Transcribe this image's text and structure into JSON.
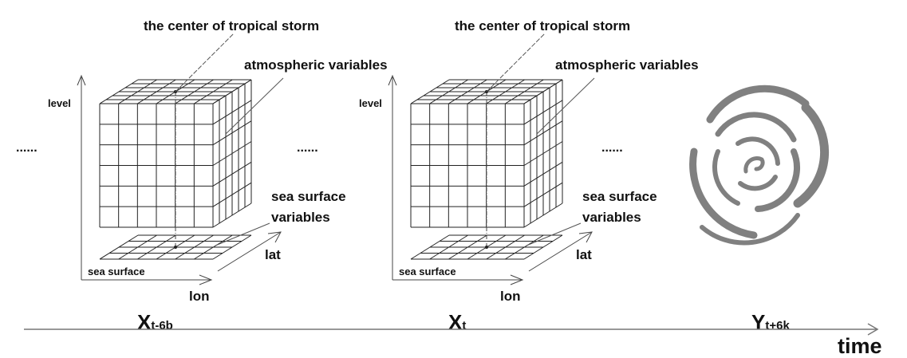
{
  "panels": [
    {
      "center_label": "the center of tropical storm",
      "atmo_label": "atmospheric variables",
      "level_label": "level",
      "sea_var_label_1": "sea surface",
      "sea_var_label_2": "variables",
      "lat_label": "lat",
      "sea_surface_label": "sea surface",
      "lon_label": "lon",
      "x_main": "X",
      "x_sub": "t-6b"
    },
    {
      "center_label": "the center of tropical storm",
      "atmo_label": "atmospheric variables",
      "level_label": "level",
      "sea_var_label_1": "sea surface",
      "sea_var_label_2": "variables",
      "lat_label": "lat",
      "sea_surface_label": "sea surface",
      "lon_label": "lon",
      "x_main": "X",
      "x_sub": "t"
    }
  ],
  "ellipses": [
    "......",
    "......",
    "......"
  ],
  "output": {
    "y_main": "Y",
    "y_sub": "t+6k",
    "storm_icon": "tropical-storm-spiral-icon",
    "storm_color": "#808080"
  },
  "timeline": {
    "label": "time"
  }
}
